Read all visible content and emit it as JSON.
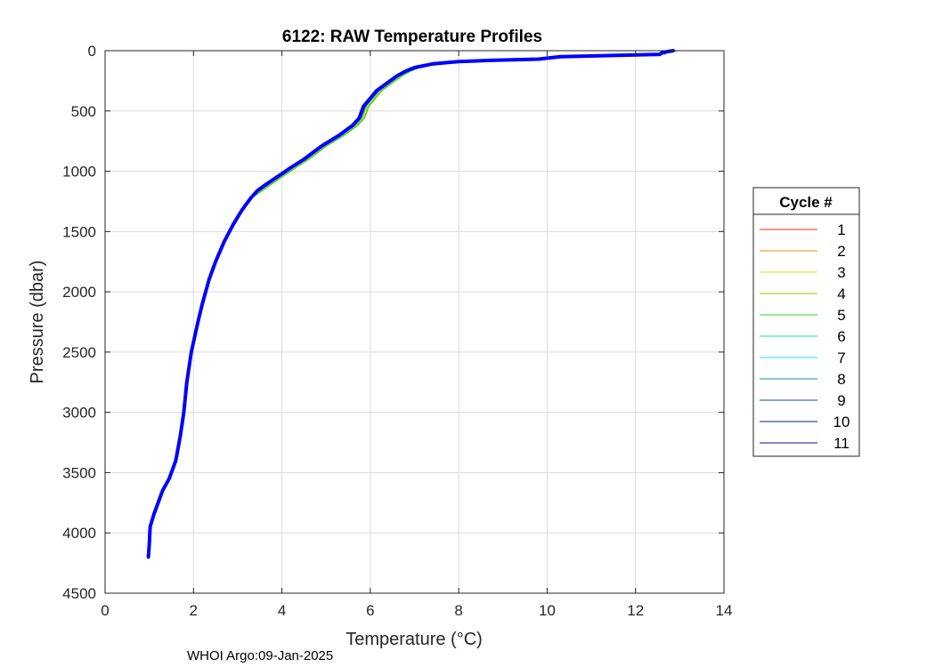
{
  "chart_data": {
    "type": "line",
    "title": "6122: RAW Temperature Profiles",
    "xlabel": "Temperature (°C)",
    "ylabel": "Pressure (dbar)",
    "xlim": [
      0,
      14
    ],
    "ylim": [
      0,
      4500
    ],
    "y_reversed": true,
    "grid": true,
    "x_ticks": [
      0,
      2,
      4,
      6,
      8,
      10,
      12,
      14
    ],
    "y_ticks": [
      0,
      500,
      1000,
      1500,
      2000,
      2500,
      3000,
      3500,
      4000,
      4500
    ],
    "legend": {
      "title": "Cycle #",
      "placement": "outside-right"
    },
    "profile_base": {
      "temperature": [
        12.85,
        12.6,
        12.55,
        10.3,
        9.8,
        8.8,
        8.0,
        7.4,
        7.0,
        6.8,
        6.6,
        6.45,
        6.15,
        5.85,
        5.75,
        5.6,
        5.3,
        4.9,
        4.5,
        4.2,
        4.0,
        3.8,
        3.6,
        3.45,
        3.3,
        3.1,
        2.9,
        2.7,
        2.5,
        2.35,
        2.2,
        2.1,
        1.95,
        1.85,
        1.78,
        1.7,
        1.6,
        1.45,
        1.3,
        1.2,
        1.1,
        1.02,
        1.0,
        0.98
      ],
      "pressure": [
        0,
        15,
        30,
        50,
        70,
        80,
        90,
        110,
        140,
        170,
        210,
        250,
        330,
        460,
        560,
        620,
        700,
        790,
        900,
        970,
        1020,
        1070,
        1120,
        1160,
        1220,
        1320,
        1440,
        1580,
        1750,
        1900,
        2100,
        2250,
        2500,
        2750,
        3000,
        3200,
        3400,
        3550,
        3650,
        3750,
        3850,
        3950,
        4100,
        4200
      ]
    },
    "series": [
      {
        "name": "1",
        "color": "#e0301e",
        "temperature_offset": 0.05,
        "width": 1
      },
      {
        "name": "2",
        "color": "#f08c00",
        "temperature_offset": -0.04,
        "width": 1
      },
      {
        "name": "3",
        "color": "#f2e100",
        "temperature_offset": 0.08,
        "width": 1
      },
      {
        "name": "4",
        "color": "#9ad400",
        "temperature_offset": 0.1,
        "width": 1
      },
      {
        "name": "5",
        "color": "#2ad42a",
        "temperature_offset": 0.12,
        "width": 1
      },
      {
        "name": "6",
        "color": "#1ed9a8",
        "temperature_offset": 0.06,
        "width": 1
      },
      {
        "name": "7",
        "color": "#1ee0f0",
        "temperature_offset": 0.03,
        "width": 1
      },
      {
        "name": "8",
        "color": "#0a8fb4",
        "temperature_offset": -0.02,
        "width": 1
      },
      {
        "name": "9",
        "color": "#0a4fa0",
        "temperature_offset": 0.0,
        "width": 1
      },
      {
        "name": "10",
        "color": "#0a1e8c",
        "temperature_offset": -0.03,
        "width": 1
      },
      {
        "name": "11",
        "color": "#0a0a96",
        "temperature_offset": 0.0,
        "width": 1
      },
      {
        "name": "",
        "color": "#0000ff",
        "temperature_offset": 0.0,
        "width": 4
      }
    ]
  },
  "footer": "WHOI Argo:09-Jan-2025"
}
